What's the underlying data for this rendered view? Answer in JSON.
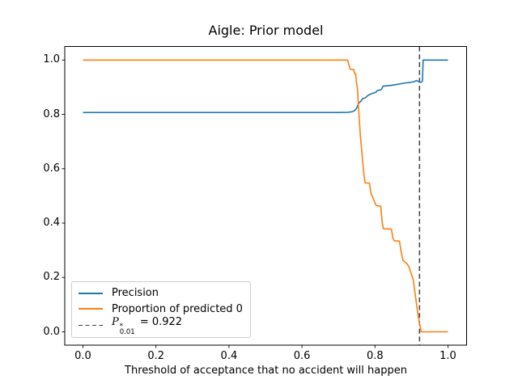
{
  "chart_data": {
    "type": "line",
    "title": "Aigle: Prior model",
    "xlabel": "Threshold of acceptance that no accident will happen",
    "ylabel": "",
    "xlim": [
      -0.05,
      1.05
    ],
    "ylim": [
      -0.05,
      1.05
    ],
    "grid": false,
    "legend_position": "lower left",
    "xticks": {
      "values": [
        0.0,
        0.2,
        0.4,
        0.6,
        0.8,
        1.0
      ],
      "labels": [
        "0.0",
        "0.2",
        "0.4",
        "0.6",
        "0.8",
        "1.0"
      ]
    },
    "yticks": {
      "values": [
        0.0,
        0.2,
        0.4,
        0.6,
        0.8,
        1.0
      ],
      "labels": [
        "0.0",
        "0.2",
        "0.4",
        "0.6",
        "0.8",
        "1.0"
      ]
    },
    "series": [
      {
        "name": "Precision",
        "color": "#1f77b4",
        "points": [
          [
            0.0,
            0.807
          ],
          [
            0.6,
            0.807
          ],
          [
            0.7,
            0.807
          ],
          [
            0.725,
            0.808
          ],
          [
            0.738,
            0.81
          ],
          [
            0.745,
            0.815
          ],
          [
            0.75,
            0.824
          ],
          [
            0.755,
            0.84
          ],
          [
            0.758,
            0.844
          ],
          [
            0.762,
            0.85
          ],
          [
            0.766,
            0.858
          ],
          [
            0.772,
            0.86
          ],
          [
            0.776,
            0.864
          ],
          [
            0.78,
            0.869
          ],
          [
            0.785,
            0.873
          ],
          [
            0.79,
            0.876
          ],
          [
            0.797,
            0.879
          ],
          [
            0.803,
            0.882
          ],
          [
            0.806,
            0.888
          ],
          [
            0.815,
            0.89
          ],
          [
            0.818,
            0.893
          ],
          [
            0.822,
            0.904
          ],
          [
            0.832,
            0.905
          ],
          [
            0.845,
            0.907
          ],
          [
            0.858,
            0.91
          ],
          [
            0.872,
            0.913
          ],
          [
            0.885,
            0.916
          ],
          [
            0.898,
            0.918
          ],
          [
            0.908,
            0.921
          ],
          [
            0.914,
            0.925
          ],
          [
            0.919,
            0.921
          ],
          [
            0.925,
            0.918
          ],
          [
            0.93,
            0.922
          ],
          [
            0.932,
            1.0
          ],
          [
            1.0,
            1.0
          ]
        ]
      },
      {
        "name": "Proportion of predicted 0",
        "color": "#ff7f0e",
        "points": [
          [
            0.0,
            1.0
          ],
          [
            0.6,
            1.0
          ],
          [
            0.725,
            1.0
          ],
          [
            0.728,
            0.985
          ],
          [
            0.732,
            0.966
          ],
          [
            0.742,
            0.965
          ],
          [
            0.744,
            0.951
          ],
          [
            0.747,
            0.95
          ],
          [
            0.749,
            0.92
          ],
          [
            0.752,
            0.894
          ],
          [
            0.756,
            0.8
          ],
          [
            0.76,
            0.72
          ],
          [
            0.764,
            0.66
          ],
          [
            0.768,
            0.6
          ],
          [
            0.771,
            0.567
          ],
          [
            0.773,
            0.548
          ],
          [
            0.785,
            0.547
          ],
          [
            0.789,
            0.51
          ],
          [
            0.796,
            0.488
          ],
          [
            0.803,
            0.465
          ],
          [
            0.816,
            0.462
          ],
          [
            0.82,
            0.4
          ],
          [
            0.823,
            0.379
          ],
          [
            0.845,
            0.378
          ],
          [
            0.849,
            0.345
          ],
          [
            0.853,
            0.335
          ],
          [
            0.867,
            0.334
          ],
          [
            0.871,
            0.3
          ],
          [
            0.877,
            0.262
          ],
          [
            0.888,
            0.25
          ],
          [
            0.893,
            0.24
          ],
          [
            0.905,
            0.19
          ],
          [
            0.91,
            0.14
          ],
          [
            0.916,
            0.08
          ],
          [
            0.922,
            0.03
          ],
          [
            0.927,
            0.0
          ],
          [
            1.0,
            0.0
          ]
        ]
      }
    ],
    "vline": {
      "x": 0.922,
      "color": "#3f3f3f",
      "style": "dashed",
      "label": {
        "symbol": "P",
        "sup": "*",
        "sub": "0.01",
        "suffix": " = 0.922"
      }
    }
  }
}
